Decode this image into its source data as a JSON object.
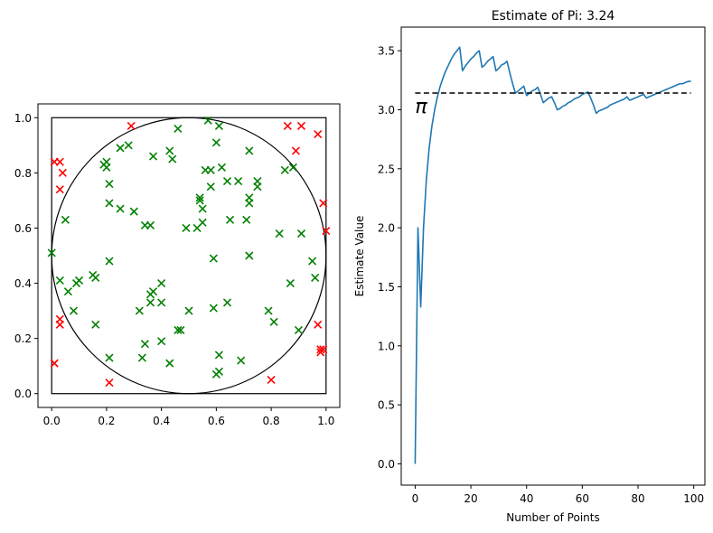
{
  "colors": {
    "inside": "#008000",
    "outside": "#ff0000",
    "estimate_line": "#1f77b4",
    "reference_line": "#000000",
    "frame": "#000000"
  },
  "chart_data": [
    {
      "type": "scatter",
      "title": "",
      "xlabel": "",
      "ylabel": "",
      "xlim": [
        -0.05,
        1.05
      ],
      "ylim": [
        -0.05,
        1.05
      ],
      "xticks": [
        "0.0",
        "0.2",
        "0.4",
        "0.6",
        "0.8",
        "1.0"
      ],
      "yticks": [
        "0.0",
        "0.2",
        "0.4",
        "0.6",
        "0.8",
        "1.0"
      ],
      "marker": "x",
      "shapes": {
        "square": {
          "x0": 0,
          "y0": 0,
          "x1": 1,
          "y1": 1
        },
        "circle": {
          "cx": 0.5,
          "cy": 0.5,
          "r": 0.5
        }
      },
      "series": [
        {
          "color": "inside",
          "points": [
            [
              0.57,
              0.99
            ],
            [
              0.61,
              0.97
            ],
            [
              0.46,
              0.96
            ],
            [
              0.28,
              0.9
            ],
            [
              0.25,
              0.89
            ],
            [
              0.43,
              0.88
            ],
            [
              0.72,
              0.88
            ],
            [
              0.2,
              0.84
            ],
            [
              0.19,
              0.83
            ],
            [
              0.2,
              0.82
            ],
            [
              0.37,
              0.86
            ],
            [
              0.44,
              0.85
            ],
            [
              0.6,
              0.91
            ],
            [
              0.62,
              0.82
            ],
            [
              0.56,
              0.81
            ],
            [
              0.58,
              0.81
            ],
            [
              0.85,
              0.81
            ],
            [
              0.88,
              0.82
            ],
            [
              0.75,
              0.77
            ],
            [
              0.64,
              0.77
            ],
            [
              0.68,
              0.77
            ],
            [
              0.58,
              0.75
            ],
            [
              0.75,
              0.75
            ],
            [
              0.21,
              0.76
            ],
            [
              0.54,
              0.71
            ],
            [
              0.54,
              0.7
            ],
            [
              0.72,
              0.71
            ],
            [
              0.72,
              0.69
            ],
            [
              0.21,
              0.69
            ],
            [
              0.25,
              0.67
            ],
            [
              0.55,
              0.67
            ],
            [
              0.3,
              0.66
            ],
            [
              0.05,
              0.63
            ],
            [
              0.65,
              0.63
            ],
            [
              0.71,
              0.63
            ],
            [
              0.34,
              0.61
            ],
            [
              0.36,
              0.61
            ],
            [
              0.55,
              0.62
            ],
            [
              0.53,
              0.6
            ],
            [
              0.49,
              0.6
            ],
            [
              0.0,
              0.51
            ],
            [
              0.83,
              0.58
            ],
            [
              0.91,
              0.58
            ],
            [
              0.21,
              0.48
            ],
            [
              0.59,
              0.49
            ],
            [
              0.72,
              0.5
            ],
            [
              0.95,
              0.48
            ],
            [
              0.03,
              0.41
            ],
            [
              0.1,
              0.41
            ],
            [
              0.09,
              0.4
            ],
            [
              0.15,
              0.43
            ],
            [
              0.16,
              0.42
            ],
            [
              0.4,
              0.4
            ],
            [
              0.37,
              0.37
            ],
            [
              0.36,
              0.36
            ],
            [
              0.06,
              0.37
            ],
            [
              0.87,
              0.4
            ],
            [
              0.96,
              0.42
            ],
            [
              0.36,
              0.33
            ],
            [
              0.4,
              0.33
            ],
            [
              0.64,
              0.33
            ],
            [
              0.08,
              0.3
            ],
            [
              0.32,
              0.3
            ],
            [
              0.5,
              0.3
            ],
            [
              0.59,
              0.31
            ],
            [
              0.79,
              0.3
            ],
            [
              0.16,
              0.25
            ],
            [
              0.81,
              0.26
            ],
            [
              0.46,
              0.23
            ],
            [
              0.47,
              0.23
            ],
            [
              0.9,
              0.23
            ],
            [
              0.34,
              0.18
            ],
            [
              0.4,
              0.19
            ],
            [
              0.61,
              0.14
            ],
            [
              0.33,
              0.13
            ],
            [
              0.21,
              0.13
            ],
            [
              0.69,
              0.12
            ],
            [
              0.43,
              0.11
            ],
            [
              0.61,
              0.08
            ],
            [
              0.6,
              0.07
            ]
          ]
        },
        {
          "color": "outside",
          "points": [
            [
              0.29,
              0.97
            ],
            [
              0.86,
              0.97
            ],
            [
              0.91,
              0.97
            ],
            [
              0.97,
              0.94
            ],
            [
              0.89,
              0.88
            ],
            [
              0.01,
              0.84
            ],
            [
              0.03,
              0.84
            ],
            [
              0.04,
              0.8
            ],
            [
              0.03,
              0.74
            ],
            [
              0.99,
              0.69
            ],
            [
              1.0,
              0.59
            ],
            [
              0.03,
              0.27
            ],
            [
              0.03,
              0.25
            ],
            [
              0.97,
              0.25
            ],
            [
              0.98,
              0.16
            ],
            [
              0.99,
              0.16
            ],
            [
              0.98,
              0.15
            ],
            [
              0.01,
              0.11
            ],
            [
              0.8,
              0.05
            ],
            [
              0.21,
              0.04
            ]
          ]
        }
      ]
    },
    {
      "type": "line",
      "title": "Estimate of Pi: 3.24",
      "xlabel": "Number of Points",
      "ylabel": "Estimate Value",
      "xlim": [
        -5,
        104
      ],
      "ylim": [
        -0.18,
        3.7
      ],
      "xticks": [
        "0",
        "20",
        "40",
        "60",
        "80",
        "100"
      ],
      "yticks": [
        "0.0",
        "0.5",
        "1.0",
        "1.5",
        "2.0",
        "2.5",
        "3.0",
        "3.5"
      ],
      "reference": {
        "y": 3.14159,
        "label": "π",
        "style": "dashed"
      },
      "series": [
        {
          "color": "estimate_line",
          "points": [
            [
              0,
              0
            ],
            [
              1,
              2.0
            ],
            [
              2,
              1.33
            ],
            [
              3,
              2.0
            ],
            [
              4,
              2.4
            ],
            [
              5,
              2.67
            ],
            [
              6,
              2.86
            ],
            [
              7,
              3.0
            ],
            [
              8,
              3.11
            ],
            [
              9,
              3.2
            ],
            [
              10,
              3.27
            ],
            [
              11,
              3.33
            ],
            [
              12,
              3.38
            ],
            [
              13,
              3.43
            ],
            [
              14,
              3.47
            ],
            [
              15,
              3.5
            ],
            [
              16,
              3.53
            ],
            [
              17,
              3.33
            ],
            [
              18,
              3.37
            ],
            [
              19,
              3.4
            ],
            [
              20,
              3.43
            ],
            [
              21,
              3.45
            ],
            [
              22,
              3.48
            ],
            [
              23,
              3.5
            ],
            [
              24,
              3.36
            ],
            [
              25,
              3.38
            ],
            [
              26,
              3.41
            ],
            [
              27,
              3.43
            ],
            [
              28,
              3.45
            ],
            [
              29,
              3.33
            ],
            [
              30,
              3.35
            ],
            [
              31,
              3.38
            ],
            [
              32,
              3.39
            ],
            [
              33,
              3.41
            ],
            [
              34,
              3.31
            ],
            [
              35,
              3.22
            ],
            [
              36,
              3.14
            ],
            [
              37,
              3.16
            ],
            [
              38,
              3.18
            ],
            [
              39,
              3.2
            ],
            [
              40,
              3.12
            ],
            [
              41,
              3.14
            ],
            [
              42,
              3.16
            ],
            [
              43,
              3.17
            ],
            [
              44,
              3.19
            ],
            [
              45,
              3.13
            ],
            [
              46,
              3.06
            ],
            [
              47,
              3.08
            ],
            [
              48,
              3.1
            ],
            [
              49,
              3.11
            ],
            [
              50,
              3.06
            ],
            [
              51,
              3.0
            ],
            [
              52,
              3.01
            ],
            [
              53,
              3.03
            ],
            [
              54,
              3.04
            ],
            [
              55,
              3.06
            ],
            [
              56,
              3.07
            ],
            [
              57,
              3.09
            ],
            [
              58,
              3.1
            ],
            [
              59,
              3.11
            ],
            [
              60,
              3.13
            ],
            [
              61,
              3.14
            ],
            [
              62,
              3.15
            ],
            [
              63,
              3.1
            ],
            [
              64,
              3.04
            ],
            [
              65,
              2.97
            ],
            [
              66,
              2.99
            ],
            [
              67,
              3.0
            ],
            [
              68,
              3.01
            ],
            [
              69,
              3.02
            ],
            [
              70,
              3.04
            ],
            [
              71,
              3.05
            ],
            [
              72,
              3.06
            ],
            [
              73,
              3.07
            ],
            [
              74,
              3.08
            ],
            [
              75,
              3.09
            ],
            [
              76,
              3.11
            ],
            [
              77,
              3.08
            ],
            [
              78,
              3.09
            ],
            [
              79,
              3.1
            ],
            [
              80,
              3.11
            ],
            [
              81,
              3.12
            ],
            [
              82,
              3.13
            ],
            [
              83,
              3.1
            ],
            [
              84,
              3.11
            ],
            [
              85,
              3.12
            ],
            [
              86,
              3.13
            ],
            [
              87,
              3.14
            ],
            [
              88,
              3.15
            ],
            [
              89,
              3.16
            ],
            [
              90,
              3.17
            ],
            [
              91,
              3.18
            ],
            [
              92,
              3.19
            ],
            [
              93,
              3.2
            ],
            [
              94,
              3.21
            ],
            [
              95,
              3.22
            ],
            [
              96,
              3.22
            ],
            [
              97,
              3.23
            ],
            [
              98,
              3.24
            ],
            [
              99,
              3.24
            ]
          ]
        }
      ]
    }
  ]
}
